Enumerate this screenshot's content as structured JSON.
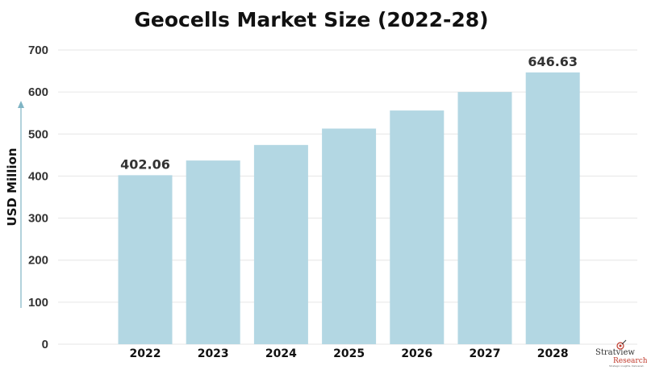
{
  "chart_data": {
    "type": "bar",
    "title": "Geocells Market Size (2022-28)",
    "ylabel": "USD Million",
    "categories": [
      "2022",
      "2023",
      "2024",
      "2025",
      "2026",
      "2027",
      "2028"
    ],
    "values": [
      402.06,
      437,
      474,
      513,
      556,
      600,
      646.63
    ],
    "data_labels": [
      "402.06",
      "",
      "",
      "",
      "",
      "",
      "646.63"
    ],
    "ylim": [
      0,
      700
    ],
    "yticks": [
      0,
      100,
      200,
      300,
      400,
      500,
      600,
      700
    ],
    "grid": true,
    "bar_color": "#b3d7e3",
    "axis_arrow_color": "#7fb4c4"
  },
  "logo": {
    "name": "Stratview",
    "name2": "Research",
    "tagline": "Strategic insights. Delivered."
  }
}
